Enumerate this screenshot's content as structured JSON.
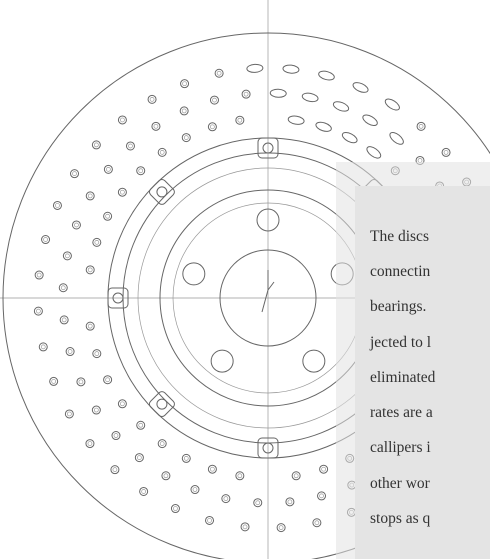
{
  "text_box": {
    "lines": [
      "The discs",
      "connectin",
      "bearings.",
      "jected to l",
      "eliminated",
      "rates are a",
      "callipers i",
      "other wor",
      "stops as q"
    ]
  }
}
